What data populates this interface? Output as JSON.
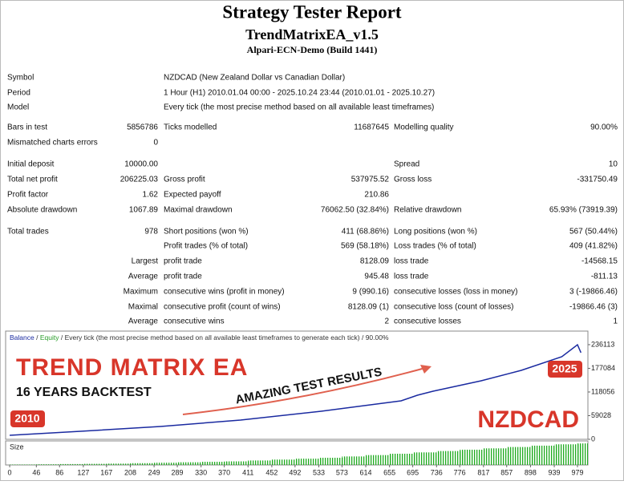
{
  "header": {
    "title": "Strategy Tester Report",
    "subtitle": "TrendMatrixEA_v1.5",
    "server": "Alpari-ECN-Demo (Build 1441)"
  },
  "table": {
    "rows": [
      [
        "Symbol",
        null,
        "NZDCAD (New Zealand Dollar vs Canadian Dollar)",
        null,
        null,
        null
      ],
      [
        "Period",
        null,
        "1 Hour (H1) 2010.01.04 00:00 - 2025.10.24 23:44 (2010.01.01 - 2025.10.27)",
        null,
        null,
        null
      ],
      [
        "Model",
        null,
        "Every tick (the most precise method based on all available least timeframes)",
        null,
        null,
        null
      ],
      [
        "Bars in test",
        "5856786",
        "Ticks modelled",
        "11687645",
        "Modelling quality",
        "90.00%"
      ],
      [
        "Mismatched charts errors",
        "0",
        null,
        null,
        null,
        null
      ],
      [
        "Initial deposit",
        "10000.00",
        null,
        null,
        "Spread",
        "10"
      ],
      [
        "Total net profit",
        "206225.03",
        "Gross profit",
        "537975.52",
        "Gross loss",
        "-331750.49"
      ],
      [
        "Profit factor",
        "1.62",
        "Expected payoff",
        "210.86",
        null,
        null
      ],
      [
        "Absolute drawdown",
        "1067.89",
        "Maximal drawdown",
        "76062.50 (32.84%)",
        "Relative drawdown",
        "65.93% (73919.39)"
      ],
      [
        "Total trades",
        "978",
        "Short positions (won %)",
        "411 (68.86%)",
        "Long positions (won %)",
        "567 (50.44%)"
      ],
      [
        null,
        null,
        "Profit trades (% of total)",
        "569 (58.18%)",
        "Loss trades (% of total)",
        "409 (41.82%)"
      ],
      [
        null,
        "Largest",
        "profit trade",
        "8128.09",
        "loss trade",
        "-14568.15"
      ],
      [
        null,
        "Average",
        "profit trade",
        "945.48",
        "loss trade",
        "-811.13"
      ],
      [
        null,
        "Maximum",
        "consecutive wins (profit in money)",
        "9 (990.16)",
        "consecutive losses (loss in money)",
        "3 (-19866.46)"
      ],
      [
        null,
        "Maximal",
        "consecutive profit (count of wins)",
        "8128.09 (1)",
        "consecutive loss (count of losses)",
        "-19866.46 (3)"
      ],
      [
        null,
        "Average",
        "consecutive wins",
        "2",
        "consecutive losses",
        "1"
      ]
    ]
  },
  "chart_data": {
    "type": "line",
    "separator": "/",
    "header_rest": "/ Every tick (the most precise method based on all available least timeframes to generate each tick) / 90.00%",
    "equity_label": "Equity",
    "equity_color": "#2a9d2a",
    "x": [
      0,
      122,
      260,
      398,
      537,
      675,
      703,
      730,
      813,
      882,
      952,
      979,
      985
    ],
    "series": [
      {
        "name": "Balance",
        "color": "#1a2aa0",
        "values": [
          10000,
          20000,
          32000,
          48000,
          70000,
          96000,
          110000,
          120000,
          146000,
          172000,
          206000,
          236000,
          216225
        ]
      }
    ],
    "xlim": [
      -7,
      997
    ],
    "xticks": [
      0,
      46,
      86,
      127,
      167,
      208,
      249,
      289,
      330,
      370,
      411,
      452,
      492,
      533,
      573,
      614,
      655,
      695,
      736,
      776,
      817,
      857,
      898,
      939,
      979
    ],
    "ylim": [
      0,
      266000
    ],
    "yticks": [
      0,
      59028,
      118056,
      177084,
      236113
    ],
    "size_label": "Size",
    "size_color": "#1faa1f",
    "size_ylim": [
      0,
      100
    ],
    "size_values": [
      2,
      3,
      4,
      5,
      6,
      8,
      10,
      12,
      14,
      16,
      20,
      24,
      28,
      32,
      38,
      44,
      50,
      56,
      62,
      68,
      74,
      80,
      86,
      92,
      96
    ]
  },
  "banner": {
    "title": "TREND MATRIX EA",
    "subtitle": "16 YEARS BACKTEST",
    "tagline": "AMAZING TEST RESULTS",
    "start_year": "2010",
    "end_year": "2025",
    "symbol": "NZDCAD"
  }
}
